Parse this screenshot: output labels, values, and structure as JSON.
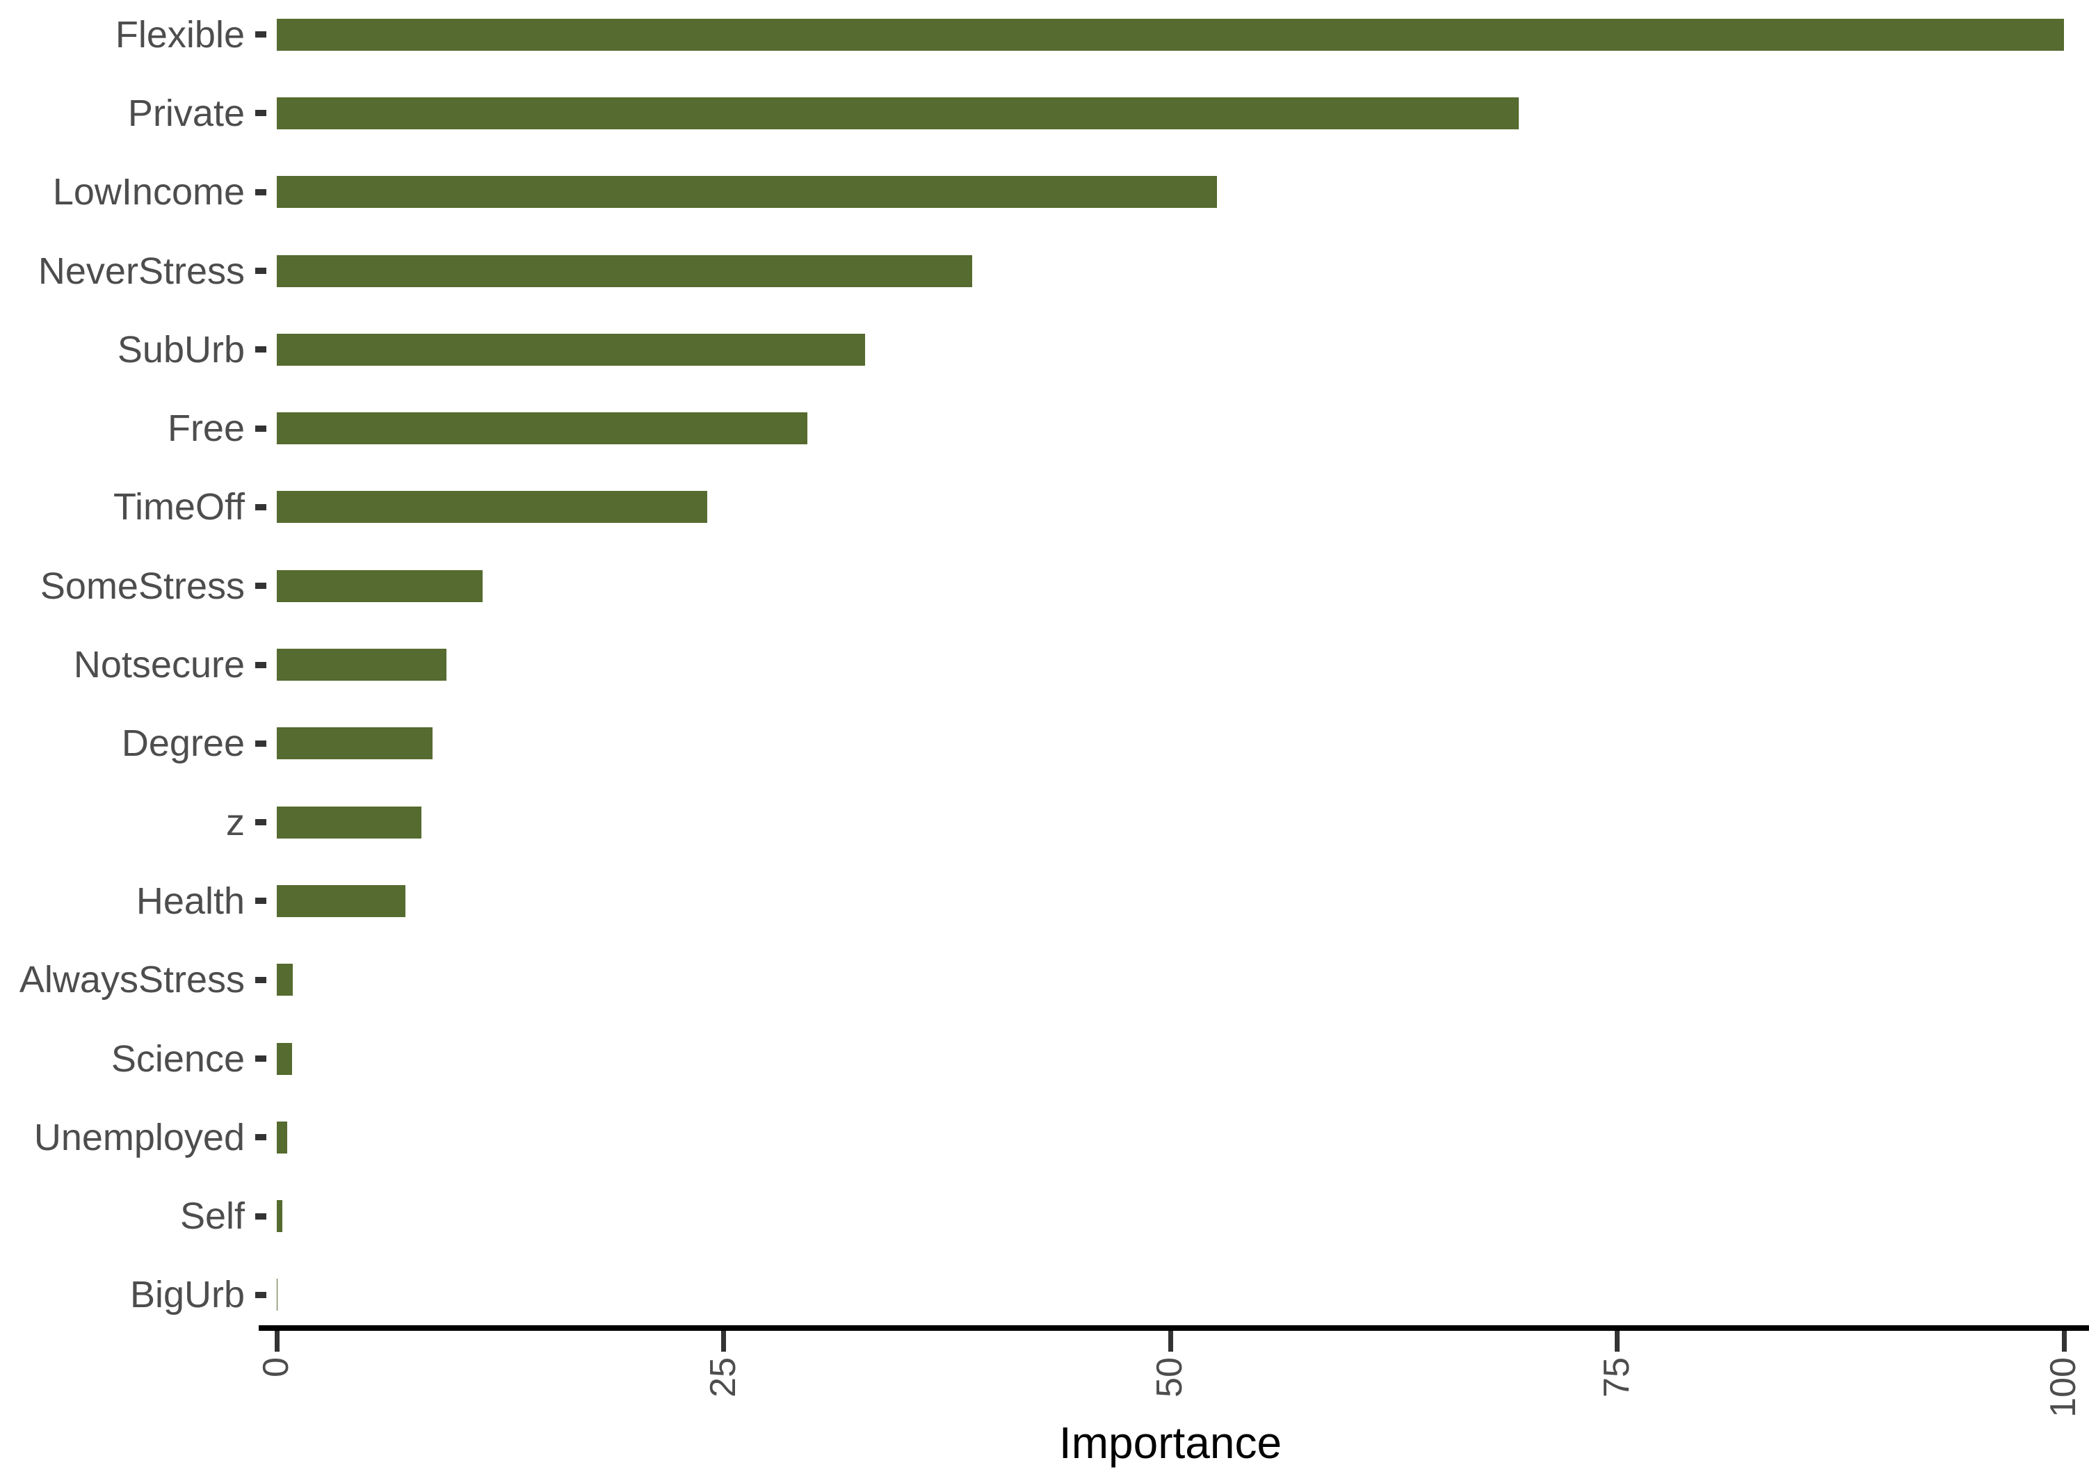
{
  "chart_data": {
    "type": "bar",
    "orientation": "horizontal",
    "title": "",
    "xlabel": "Importance",
    "ylabel": "",
    "categories": [
      "Flexible",
      "Private",
      "LowIncome",
      "NeverStress",
      "SubUrb",
      "Free",
      "TimeOff",
      "SomeStress",
      "Notsecure",
      "Degree",
      "z",
      "Health",
      "AlwaysStress",
      "Science",
      "Unemployed",
      "Self",
      "BigUrb"
    ],
    "values": [
      100,
      69.5,
      52.6,
      38.9,
      32.9,
      29.7,
      24.1,
      11.5,
      9.5,
      8.7,
      8.1,
      7.2,
      0.9,
      0.85,
      0.6,
      0.3,
      0.05
    ],
    "x_ticks": [
      0,
      25,
      50,
      75,
      100
    ],
    "xlim": [
      0,
      100
    ],
    "grid": false,
    "legend": null,
    "bar_color": "#556B2F",
    "axis_line_color": "#000000",
    "tick_mark_color": "#333333",
    "axis_text_color": "#4D4D4D",
    "axis_title_color": "#000000"
  }
}
